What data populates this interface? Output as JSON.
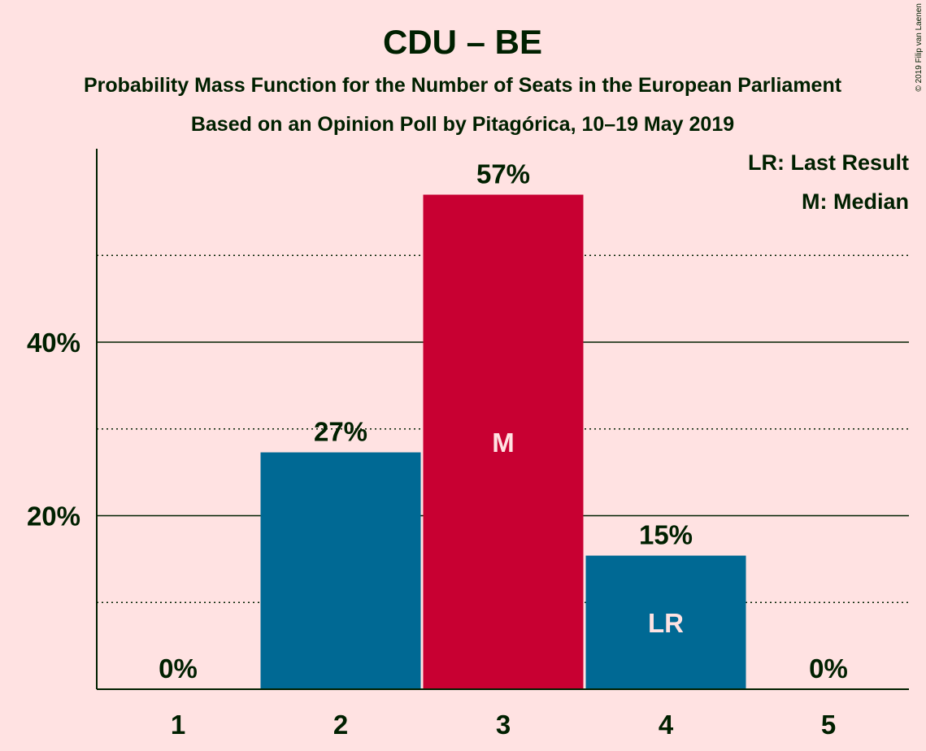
{
  "title": "CDU – BE",
  "subtitle_line1": "Probability Mass Function for the Number of Seats in the European Parliament",
  "subtitle_line2": "Based on an Opinion Poll by Pitagórica, 10–19 May 2019",
  "legend": {
    "last_result": "LR: Last Result",
    "median": "M: Median"
  },
  "copyright": "© 2019 Filip van Laenen",
  "colors": {
    "background": "#FFE2E2",
    "text": "#002000",
    "bar": "#006994",
    "median_bar": "#C80032"
  },
  "chart_data": {
    "type": "bar",
    "categories": [
      "1",
      "2",
      "3",
      "4",
      "5"
    ],
    "values": [
      0,
      27.3,
      57,
      15.4,
      0
    ],
    "data_labels": [
      "0%",
      "27%",
      "57%",
      "15%",
      "0%"
    ],
    "bar_marks": [
      "",
      "",
      "M",
      "LR",
      ""
    ],
    "median_index": 2,
    "ylim": [
      0,
      62
    ],
    "yticks_major": [
      {
        "value": 20,
        "label": "20%"
      },
      {
        "value": 40,
        "label": "40%"
      }
    ],
    "yticks_minor": [
      10,
      30,
      50
    ],
    "grid": true
  }
}
